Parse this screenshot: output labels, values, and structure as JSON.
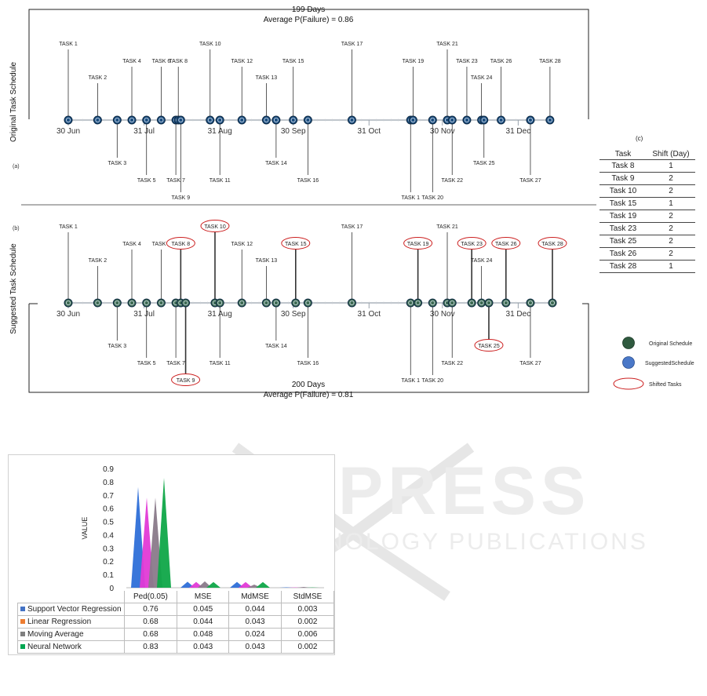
{
  "timeline": {
    "top_panel": {
      "days_label": "199 Days",
      "prob_label": "Average P(Failure) = 0.86",
      "side_label": "Original Task Schedule",
      "panel_letter": "(a)"
    },
    "bottom_panel": {
      "days_label": "200 Days",
      "prob_label": "Average P(Failure) = 0.81",
      "side_label": "Suggested Task Schedule",
      "panel_letter": "(b)"
    },
    "date_ticks": [
      "30 Jun",
      "31 Jul",
      "31 Aug",
      "30 Sep",
      "31 Oct",
      "30 Nov",
      "31 Dec"
    ],
    "original_tasks": [
      {
        "label": "TASK 1",
        "day": 0,
        "side": "up",
        "level": 3,
        "shifted": false
      },
      {
        "label": "TASK 2",
        "day": 12,
        "side": "up",
        "level": 1,
        "shifted": false
      },
      {
        "label": "TASK 3",
        "day": 20,
        "side": "down",
        "level": 1,
        "shifted": false
      },
      {
        "label": "TASK 4",
        "day": 26,
        "side": "up",
        "level": 2,
        "shifted": false
      },
      {
        "label": "TASK 5",
        "day": 32,
        "side": "down",
        "level": 2,
        "shifted": false
      },
      {
        "label": "TASK 6",
        "day": 38,
        "side": "up",
        "level": 2,
        "shifted": false
      },
      {
        "label": "TASK 7",
        "day": 44,
        "side": "down",
        "level": 2,
        "shifted": false
      },
      {
        "label": "TASK 8",
        "day": 45,
        "side": "up",
        "level": 2,
        "shifted": false
      },
      {
        "label": "TASK 9",
        "day": 46,
        "side": "down",
        "level": 3,
        "shifted": false
      },
      {
        "label": "TASK 10",
        "day": 58,
        "side": "up",
        "level": 3,
        "shifted": false
      },
      {
        "label": "TASK 11",
        "day": 62,
        "side": "down",
        "level": 2,
        "shifted": false
      },
      {
        "label": "TASK 12",
        "day": 71,
        "side": "up",
        "level": 2,
        "shifted": false
      },
      {
        "label": "TASK 13",
        "day": 81,
        "side": "up",
        "level": 1,
        "shifted": false
      },
      {
        "label": "TASK 14",
        "day": 85,
        "side": "down",
        "level": 1,
        "shifted": false
      },
      {
        "label": "TASK 15",
        "day": 92,
        "side": "up",
        "level": 2,
        "shifted": false
      },
      {
        "label": "TASK 16",
        "day": 98,
        "side": "down",
        "level": 2,
        "shifted": false
      },
      {
        "label": "TASK 17",
        "day": 116,
        "side": "up",
        "level": 3,
        "shifted": false
      },
      {
        "label": "TASK 1",
        "day": 140,
        "side": "down",
        "level": 3,
        "shifted": false
      },
      {
        "label": "TASK 19",
        "day": 141,
        "side": "up",
        "level": 2,
        "shifted": false
      },
      {
        "label": "TASK 20",
        "day": 149,
        "side": "down",
        "level": 3,
        "shifted": false
      },
      {
        "label": "TASK 21",
        "day": 155,
        "side": "up",
        "level": 3,
        "shifted": false
      },
      {
        "label": "TASK 22",
        "day": 157,
        "side": "down",
        "level": 2,
        "shifted": false
      },
      {
        "label": "TASK 23",
        "day": 163,
        "side": "up",
        "level": 2,
        "shifted": false
      },
      {
        "label": "TASK 24",
        "day": 169,
        "side": "up",
        "level": 1,
        "shifted": false
      },
      {
        "label": "TASK 25",
        "day": 170,
        "side": "down",
        "level": 1,
        "shifted": false
      },
      {
        "label": "TASK 26",
        "day": 177,
        "side": "up",
        "level": 2,
        "shifted": false
      },
      {
        "label": "TASK 27",
        "day": 189,
        "side": "down",
        "level": 2,
        "shifted": false
      },
      {
        "label": "TASK 28",
        "day": 197,
        "side": "up",
        "level": 2,
        "shifted": false
      }
    ],
    "suggested_tasks": [
      {
        "label": "TASK 1",
        "day": 0,
        "side": "up",
        "level": 3,
        "shifted": false
      },
      {
        "label": "TASK 2",
        "day": 12,
        "side": "up",
        "level": 1,
        "shifted": false
      },
      {
        "label": "TASK 3",
        "day": 20,
        "side": "down",
        "level": 1,
        "shifted": false
      },
      {
        "label": "TASK 4",
        "day": 26,
        "side": "up",
        "level": 2,
        "shifted": false
      },
      {
        "label": "TASK 5",
        "day": 32,
        "side": "down",
        "level": 2,
        "shifted": false
      },
      {
        "label": "TASK 6",
        "day": 38,
        "side": "up",
        "level": 2,
        "shifted": false
      },
      {
        "label": "TASK 7",
        "day": 44,
        "side": "down",
        "level": 2,
        "shifted": false
      },
      {
        "label": "TASK 8",
        "day": 46,
        "side": "up",
        "level": 2,
        "shifted": true
      },
      {
        "label": "TASK 9",
        "day": 48,
        "side": "down",
        "level": 3,
        "shifted": true
      },
      {
        "label": "TASK 10",
        "day": 60,
        "side": "up",
        "level": 3,
        "shifted": true
      },
      {
        "label": "TASK 11",
        "day": 62,
        "side": "down",
        "level": 2,
        "shifted": false
      },
      {
        "label": "TASK 12",
        "day": 71,
        "side": "up",
        "level": 2,
        "shifted": false
      },
      {
        "label": "TASK 13",
        "day": 81,
        "side": "up",
        "level": 1,
        "shifted": false
      },
      {
        "label": "TASK 14",
        "day": 85,
        "side": "down",
        "level": 1,
        "shifted": false
      },
      {
        "label": "TASK 15",
        "day": 93,
        "side": "up",
        "level": 2,
        "shifted": true
      },
      {
        "label": "TASK 16",
        "day": 98,
        "side": "down",
        "level": 2,
        "shifted": false
      },
      {
        "label": "TASK 17",
        "day": 116,
        "side": "up",
        "level": 3,
        "shifted": false
      },
      {
        "label": "TASK 1",
        "day": 140,
        "side": "down",
        "level": 3,
        "shifted": false
      },
      {
        "label": "TASK 19",
        "day": 143,
        "side": "up",
        "level": 2,
        "shifted": true
      },
      {
        "label": "TASK 20",
        "day": 149,
        "side": "down",
        "level": 3,
        "shifted": false
      },
      {
        "label": "TASK 21",
        "day": 155,
        "side": "up",
        "level": 3,
        "shifted": false
      },
      {
        "label": "TASK 22",
        "day": 157,
        "side": "down",
        "level": 2,
        "shifted": false
      },
      {
        "label": "TASK 23",
        "day": 165,
        "side": "up",
        "level": 2,
        "shifted": true
      },
      {
        "label": "TASK 24",
        "day": 169,
        "side": "up",
        "level": 1,
        "shifted": false
      },
      {
        "label": "TASK 25",
        "day": 172,
        "side": "down",
        "level": 1,
        "shifted": true
      },
      {
        "label": "TASK 26",
        "day": 179,
        "side": "up",
        "level": 2,
        "shifted": true
      },
      {
        "label": "TASK 27",
        "day": 189,
        "side": "down",
        "level": 2,
        "shifted": false
      },
      {
        "label": "TASK 28",
        "day": 198,
        "side": "up",
        "level": 2,
        "shifted": true
      }
    ],
    "legend": {
      "original": "Original Schedule",
      "suggested": "SuggestedSchedule",
      "shifted": "Shifted Tasks"
    },
    "colors": {
      "original_dot": "#2f5a3f",
      "suggested_dot": "#4a78c8",
      "node_top": "#1c4e80",
      "node_bottom": "#3d6b52",
      "shift_ring": "#cc2020",
      "axis": "#9aa3ad"
    }
  },
  "shift_table": {
    "panel_letter": "(c)",
    "headers": [
      "Task",
      "Shift (Day)"
    ],
    "rows": [
      [
        "Task 8",
        "1"
      ],
      [
        "Task 9",
        "2"
      ],
      [
        "Task 10",
        "2"
      ],
      [
        "Task 15",
        "1"
      ],
      [
        "Task 19",
        "2"
      ],
      [
        "Task 23",
        "2"
      ],
      [
        "Task 25",
        "2"
      ],
      [
        "Task 26",
        "2"
      ],
      [
        "Task 28",
        "1"
      ]
    ]
  },
  "chart_data": {
    "type": "bar",
    "categories": [
      "Ped(0.05)",
      "MSE",
      "MdMSE",
      "StdMSE"
    ],
    "ylabel": "VALUE",
    "ylim": [
      0,
      0.9
    ],
    "yticks": [
      "0",
      "0.1",
      "0.2",
      "0.3",
      "0.4",
      "0.5",
      "0.6",
      "0.7",
      "0.8",
      "0.9"
    ],
    "series": [
      {
        "name": "Support Vector Regression",
        "color": "#4472c4",
        "values": [
          0.76,
          0.045,
          0.044,
          0.003
        ],
        "labels": [
          "0.76",
          "0.045",
          "0.044",
          "0.003"
        ]
      },
      {
        "name": "Linear Regression",
        "color": "#ed7d31",
        "values": [
          0.68,
          0.044,
          0.043,
          0.002
        ],
        "labels": [
          "0.68",
          "0.044",
          "0.043",
          "0.002"
        ]
      },
      {
        "name": "Moving Average",
        "color": "#7f7f7f",
        "values": [
          0.68,
          0.048,
          0.024,
          0.006
        ],
        "labels": [
          "0.68",
          "0.048",
          "0.024",
          "0.006"
        ]
      },
      {
        "name": "Neural Network",
        "color": "#00a651",
        "values": [
          0.83,
          0.043,
          0.043,
          0.002
        ],
        "labels": [
          "0.83",
          "0.043",
          "0.043",
          "0.002"
        ]
      }
    ],
    "display_colors": [
      "#2e6fd8",
      "#e23ad6",
      "#8a7a8a",
      "#0fa648"
    ]
  }
}
